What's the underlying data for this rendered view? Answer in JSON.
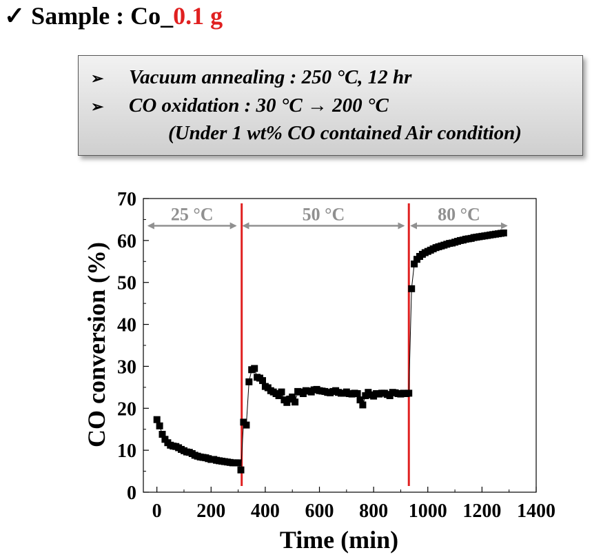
{
  "header": {
    "check": "✓",
    "title_main": "Sample : Co_",
    "title_highlight": "0.1 g"
  },
  "conditions": {
    "bullet": "➢",
    "line1": "Vacuum annealing : 250 °C, 12 hr",
    "line2": "CO oxidation : 30 °C → 200 °C",
    "line3": "(Under 1 wt% CO contained Air condition)"
  },
  "colors": {
    "highlight": "#e02020",
    "marker": "#000000",
    "divider": "#e02020",
    "annotation": "#909090"
  },
  "chart_data": {
    "type": "scatter",
    "xlabel": "Time (min)",
    "ylabel": "CO conversion (%)",
    "xlim": [
      -50,
      1400
    ],
    "ylim": [
      0,
      70
    ],
    "xticks": [
      0,
      200,
      400,
      600,
      800,
      1000,
      1200,
      1400
    ],
    "yticks": [
      0,
      10,
      20,
      30,
      40,
      50,
      60,
      70
    ],
    "grid": false,
    "segments": [
      {
        "label": "25 °C",
        "range": [
          -30,
          290
        ]
      },
      {
        "label": "50 °C",
        "range": [
          320,
          910
        ]
      },
      {
        "label": "80 °C",
        "range": [
          940,
          1290
        ]
      }
    ],
    "vlines": [
      313,
      930
    ],
    "series": [
      {
        "x": [
          0,
          10,
          20,
          30,
          40,
          50,
          60,
          70,
          80,
          90,
          100,
          110,
          120,
          130,
          140,
          150,
          160,
          170,
          180,
          190,
          200,
          210,
          220,
          230,
          240,
          250,
          260,
          270,
          280,
          290,
          300,
          310,
          320,
          330,
          340,
          350,
          360,
          370,
          380,
          390,
          400,
          410,
          420,
          430,
          440,
          450,
          460,
          470,
          480,
          490,
          500,
          510,
          520,
          530,
          540,
          550,
          560,
          570,
          580,
          590,
          600,
          610,
          620,
          630,
          640,
          650,
          660,
          670,
          680,
          690,
          700,
          710,
          720,
          730,
          740,
          750,
          760,
          770,
          780,
          790,
          800,
          810,
          820,
          830,
          840,
          850,
          860,
          870,
          880,
          890,
          900,
          910,
          920,
          930,
          940,
          950,
          960,
          970,
          980,
          990,
          1000,
          1010,
          1020,
          1030,
          1040,
          1050,
          1060,
          1070,
          1080,
          1090,
          1100,
          1110,
          1120,
          1130,
          1140,
          1150,
          1160,
          1170,
          1180,
          1190,
          1200,
          1210,
          1220,
          1230,
          1240,
          1250,
          1260,
          1270,
          1280
        ],
        "y": [
          17.3,
          15.8,
          13.8,
          12.6,
          11.8,
          11.2,
          11.0,
          10.9,
          10.6,
          10.2,
          9.9,
          9.6,
          9.5,
          9.2,
          8.8,
          8.6,
          8.4,
          8.3,
          8.2,
          8.0,
          7.8,
          7.8,
          7.6,
          7.5,
          7.4,
          7.3,
          7.2,
          7.1,
          7.0,
          7.0,
          7.0,
          5.3,
          16.7,
          16.0,
          26.3,
          29.2,
          29.5,
          27.4,
          27.2,
          26.6,
          25.2,
          24.9,
          24.2,
          23.9,
          23.5,
          23.0,
          23.9,
          22.0,
          21.4,
          22.2,
          22.7,
          21.5,
          24.0,
          23.9,
          23.5,
          24.2,
          24.1,
          23.9,
          24.4,
          24.5,
          24.2,
          24.1,
          24.0,
          23.8,
          23.7,
          24.0,
          24.2,
          23.8,
          23.6,
          23.6,
          23.9,
          23.5,
          23.4,
          23.6,
          23.5,
          22.0,
          20.8,
          23.0,
          23.8,
          23.2,
          22.9,
          23.5,
          23.4,
          23.6,
          23.6,
          23.3,
          23.0,
          23.8,
          23.7,
          23.5,
          23.4,
          23.6,
          23.5,
          23.6,
          48.5,
          54.4,
          55.5,
          56.2,
          56.7,
          57.1,
          57.4,
          57.7,
          58.0,
          58.3,
          58.5,
          58.7,
          58.9,
          59.1,
          59.3,
          59.4,
          59.6,
          59.8,
          60.0,
          60.1,
          60.3,
          60.4,
          60.5,
          60.7,
          60.8,
          60.9,
          61.0,
          61.1,
          61.2,
          61.3,
          61.4,
          61.5,
          61.6,
          61.7,
          61.8
        ]
      }
    ]
  }
}
